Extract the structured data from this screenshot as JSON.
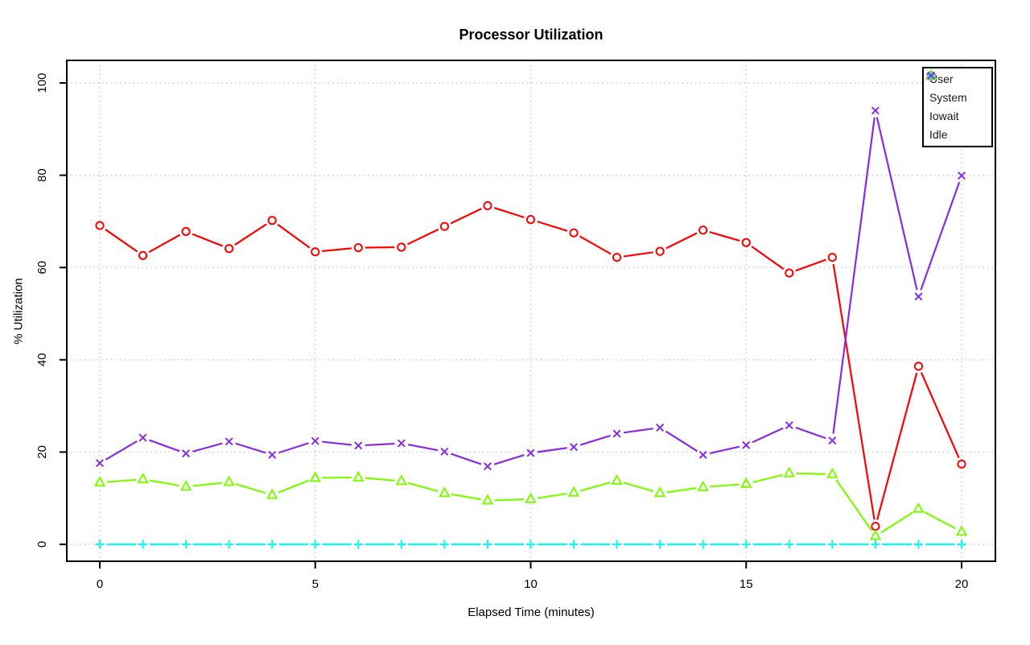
{
  "chart_data": {
    "type": "line",
    "title": "Processor Utilization",
    "xlabel": "Elapsed Time (minutes)",
    "ylabel": "% Utilization",
    "x": [
      0,
      1,
      2,
      3,
      4,
      5,
      6,
      7,
      8,
      9,
      10,
      11,
      12,
      13,
      14,
      15,
      16,
      17,
      18,
      19,
      20
    ],
    "xlim": [
      0,
      20
    ],
    "ylim": [
      0,
      100
    ],
    "xticks": [
      0,
      5,
      10,
      15,
      20
    ],
    "yticks": [
      0,
      20,
      40,
      60,
      80,
      100
    ],
    "grid": true,
    "legend_position": "top-right",
    "series": [
      {
        "name": "User",
        "marker": "circle",
        "color": "#ff0000",
        "values": [
          69.1,
          62.6,
          67.8,
          64.1,
          70.2,
          63.4,
          64.3,
          64.4,
          68.9,
          73.4,
          70.4,
          67.5,
          62.2,
          63.5,
          68.1,
          65.4,
          58.8,
          62.2,
          3.9,
          38.6,
          17.4
        ]
      },
      {
        "name": "System",
        "marker": "triangle",
        "color": "#7cfc00",
        "values": [
          13.4,
          14.1,
          12.5,
          13.5,
          10.7,
          14.4,
          14.5,
          13.7,
          11.1,
          9.5,
          9.8,
          11.2,
          13.8,
          11.1,
          12.4,
          13.1,
          15.4,
          15.2,
          1.8,
          7.7,
          2.7
        ]
      },
      {
        "name": "Iowait",
        "marker": "plus",
        "color": "#00ffff",
        "values": [
          0,
          0,
          0,
          0,
          0,
          0,
          0,
          0,
          0,
          0,
          0,
          0,
          0,
          0,
          0,
          0,
          0,
          0,
          0,
          0,
          0
        ]
      },
      {
        "name": "Idle",
        "marker": "x",
        "color": "#8a2be2",
        "values": [
          17.6,
          23.1,
          19.7,
          22.3,
          19.4,
          22.4,
          21.4,
          21.9,
          20.1,
          16.9,
          19.8,
          21.1,
          24.0,
          25.3,
          19.4,
          21.5,
          25.8,
          22.5,
          94.0,
          53.7,
          79.9
        ]
      }
    ]
  },
  "colors": {
    "background": "#ffffff",
    "grid": "#c9c9c9",
    "axis": "#000000",
    "tick_text": "#000000",
    "legend_border": "#000000",
    "legend_text": "#1a1a1a"
  }
}
